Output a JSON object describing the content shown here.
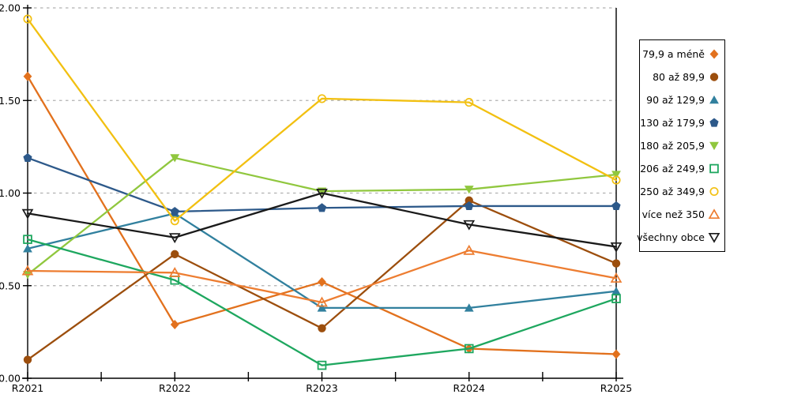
{
  "chart_data": {
    "type": "line",
    "title": "",
    "xlabel": "",
    "ylabel": "",
    "x_categories": [
      "R2021",
      "R2022",
      "R2023",
      "R2024",
      "R2025"
    ],
    "y_tick_labels": [
      "0.00",
      "0.50",
      "1.00",
      "1.50",
      "2.00"
    ],
    "y_tick_values": [
      0,
      0.5,
      1.0,
      1.5,
      2.0
    ],
    "ylim": [
      0,
      2
    ],
    "grid": "horizontal-dashed",
    "grid_color": "#b0b0b0",
    "axis_color": "#000000",
    "legend_position": "right",
    "series": [
      {
        "name": "79,9 a méně",
        "marker": "diamond-filled",
        "color": "#E2711D",
        "values": [
          1.63,
          0.29,
          0.52,
          0.16,
          0.13
        ]
      },
      {
        "name": "80 až 89,9",
        "marker": "circle-filled",
        "color": "#9C4E0D",
        "values": [
          0.1,
          0.67,
          0.27,
          0.96,
          0.62
        ]
      },
      {
        "name": "90 až 129,9",
        "marker": "triangle-up-filled",
        "color": "#31809E",
        "values": [
          0.7,
          0.89,
          0.38,
          0.38,
          0.47
        ]
      },
      {
        "name": "130 až 179,9",
        "marker": "pentagon-filled",
        "color": "#2D598A",
        "values": [
          1.19,
          0.9,
          0.92,
          0.93,
          0.93
        ]
      },
      {
        "name": "180 až 205,9",
        "marker": "triangle-down-filled",
        "color": "#90C73E",
        "values": [
          0.56,
          1.19,
          1.01,
          1.02,
          1.1
        ]
      },
      {
        "name": "206 až 249,9",
        "marker": "square-open",
        "color": "#1EA75F",
        "values": [
          0.75,
          0.53,
          0.07,
          0.16,
          0.43
        ]
      },
      {
        "name": "250 až 349,9",
        "marker": "circle-open",
        "color": "#F2C011",
        "values": [
          1.94,
          0.85,
          1.51,
          1.49,
          1.07
        ]
      },
      {
        "name": "více než 350",
        "marker": "triangle-up-open",
        "color": "#ED7D31",
        "values": [
          0.58,
          0.57,
          0.41,
          0.69,
          0.54
        ]
      },
      {
        "name": "všechny obce",
        "marker": "triangle-down-open",
        "color": "#1A1A1A",
        "values": [
          0.89,
          0.76,
          1.0,
          0.83,
          0.71
        ]
      }
    ]
  }
}
